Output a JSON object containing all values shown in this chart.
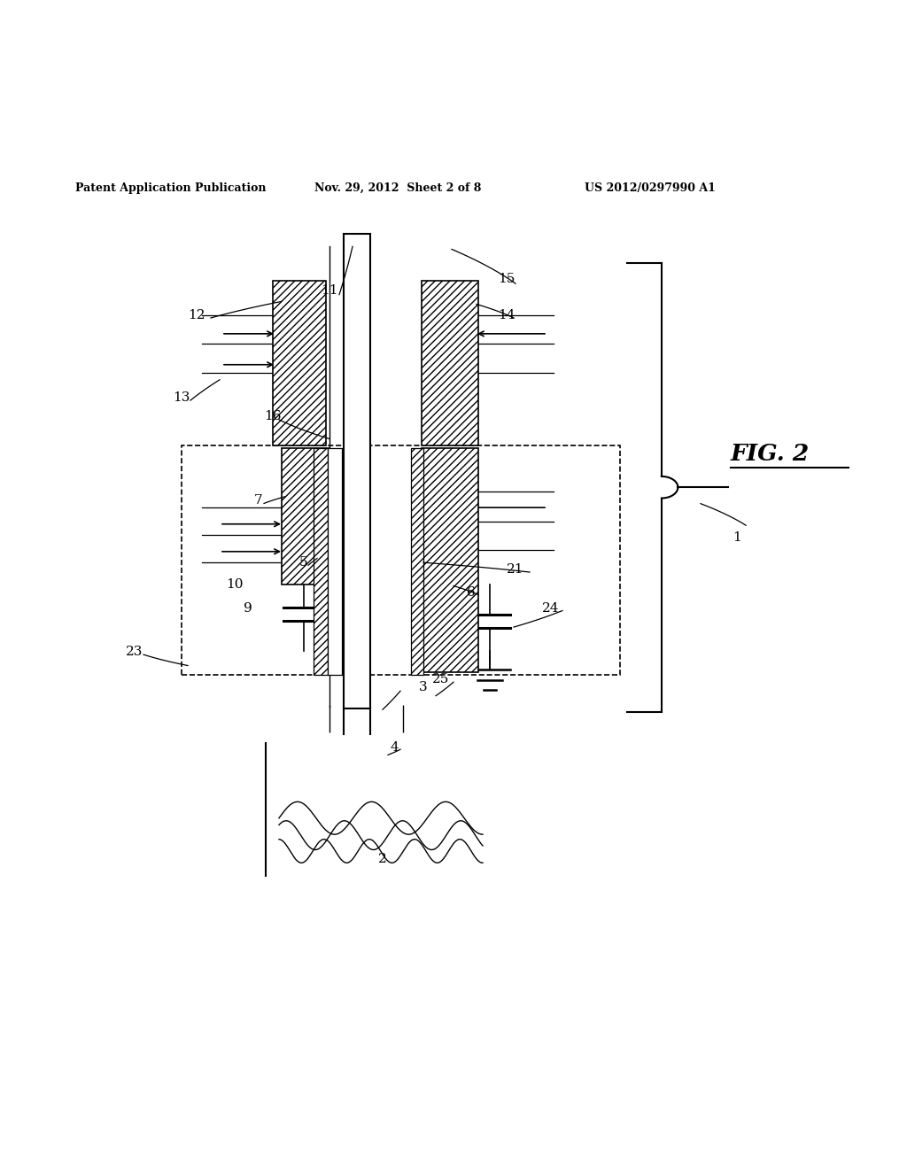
{
  "title_left": "Patent Application Publication",
  "title_mid": "Nov. 29, 2012  Sheet 2 of 8",
  "title_right": "US 2012/0297990 A1",
  "fig_label": "FIG. 2",
  "background": "#ffffff",
  "line_color": "#000000"
}
